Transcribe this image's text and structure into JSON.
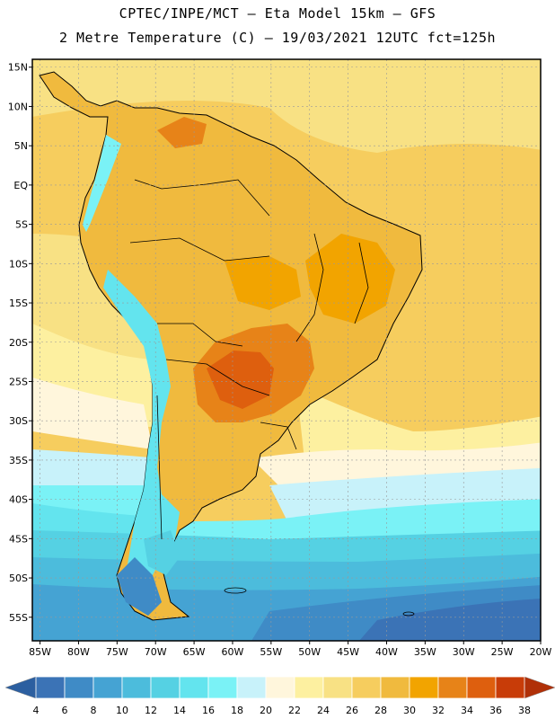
{
  "header": {
    "line1": "CPTEC/INPE/MCT –  Eta Model 15km – GFS",
    "line2": "2 Metre Temperature (C) – 19/03/2021 12UTC fct=125h"
  },
  "map": {
    "lat_labels": [
      "15N",
      "10N",
      "5N",
      "EQ",
      "5S",
      "10S",
      "15S",
      "20S",
      "25S",
      "30S",
      "35S",
      "40S",
      "45S",
      "50S",
      "55S"
    ],
    "lon_labels": [
      "85W",
      "80W",
      "75W",
      "70W",
      "65W",
      "60W",
      "55W",
      "50W",
      "45W",
      "40W",
      "35W",
      "30W",
      "25W",
      "20W"
    ],
    "lon_range": [
      -86,
      -20
    ],
    "lat_range": [
      -58,
      16
    ]
  },
  "colorbar": {
    "levels": [
      "4",
      "6",
      "8",
      "10",
      "12",
      "14",
      "16",
      "18",
      "20",
      "22",
      "24",
      "26",
      "28",
      "30",
      "32",
      "34",
      "36",
      "38"
    ],
    "colors": [
      "#2c5fa0",
      "#3b73b6",
      "#3f8bc6",
      "#45a3d3",
      "#4cbcdc",
      "#55d1e3",
      "#63e4ee",
      "#7af2f6",
      "#c8f2fa",
      "#fff6dc",
      "#fdf0a0",
      "#f8e184",
      "#f6cd5e",
      "#f0ba3e",
      "#f2a400",
      "#e78318",
      "#de5f0e",
      "#c83c08",
      "#b03008"
    ]
  }
}
